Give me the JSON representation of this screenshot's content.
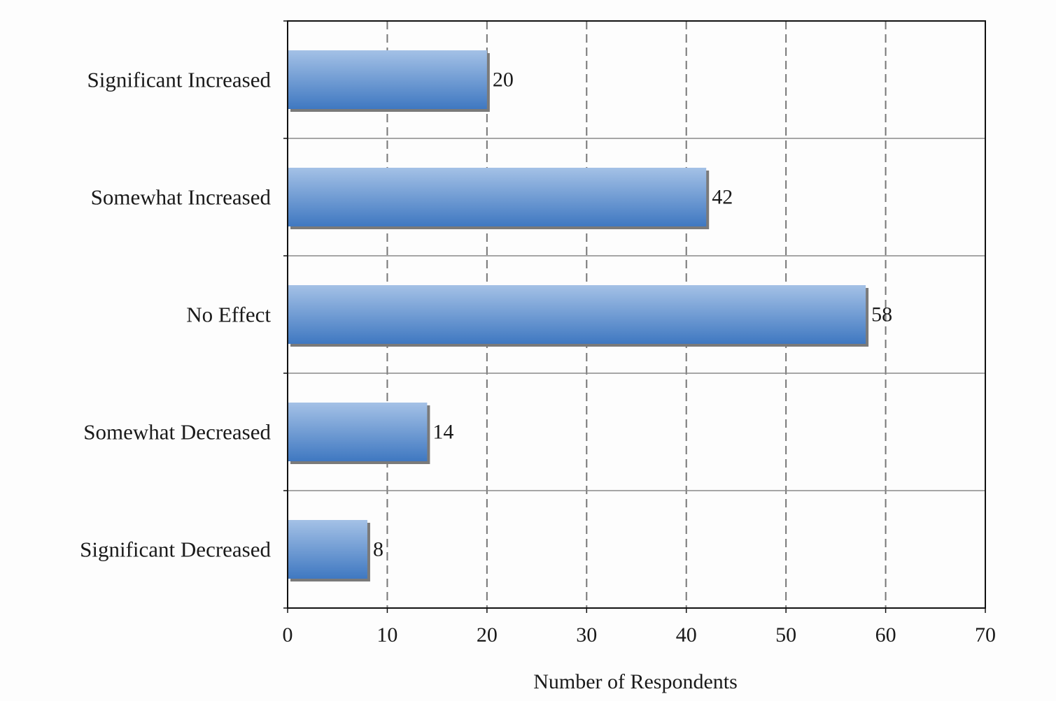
{
  "chart_data": {
    "type": "bar",
    "orientation": "horizontal",
    "title": "",
    "xlabel": "Number of Respondents",
    "ylabel": "",
    "categories": [
      "Significant Increased",
      "Somewhat Increased",
      "No Effect",
      "Somewhat Decreased",
      "Significant Decreased"
    ],
    "values": [
      20,
      42,
      58,
      14,
      8
    ],
    "xlim": [
      0,
      70
    ],
    "x_ticks": [
      0,
      10,
      20,
      30,
      40,
      50,
      60,
      70
    ],
    "grid": "vertical dashed",
    "data_labels": true,
    "bar_color_top": "#a4c1e6",
    "bar_color_bottom": "#3f78c1",
    "bar_shadow_color": "#7a7a7a"
  }
}
